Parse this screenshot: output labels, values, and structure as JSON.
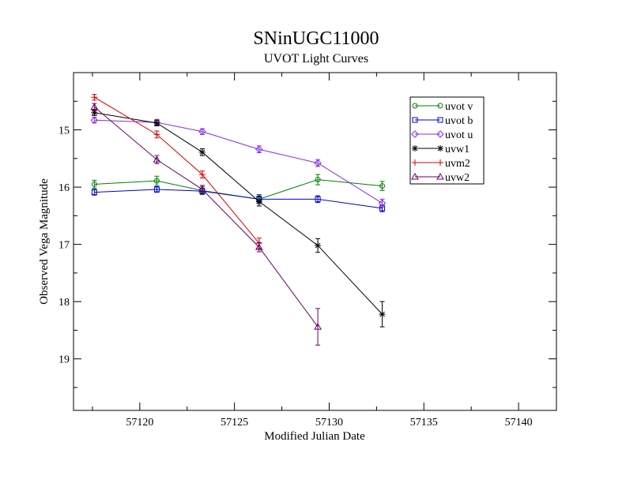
{
  "chart_data": {
    "type": "line",
    "title": "SNinUGC11000",
    "subtitle": "UVOT Light Curves",
    "xlabel": "Modified Julian Date",
    "ylabel": "Observed Vega Magnitude",
    "xlim": [
      57116.5,
      57142.0
    ],
    "ylim": [
      19.9,
      14.0
    ],
    "y_inverted": true,
    "xticks": [
      57120,
      57125,
      57130,
      57135,
      57140
    ],
    "yticks": [
      15,
      16,
      17,
      18,
      19
    ],
    "legend_position": "top-right",
    "series": [
      {
        "name": "uvot v",
        "color": "#008000",
        "marker": "circle",
        "x": [
          57117.6,
          57120.9,
          57123.3,
          57126.3,
          57129.4,
          57132.8
        ],
        "y": [
          15.95,
          15.89,
          16.06,
          16.21,
          15.87,
          15.98
        ],
        "err": [
          0.07,
          0.08,
          0.07,
          0.08,
          0.09,
          0.08
        ]
      },
      {
        "name": "uvot b",
        "color": "#0000cc",
        "marker": "square",
        "x": [
          57117.6,
          57120.9,
          57123.3,
          57126.3,
          57129.4,
          57132.8
        ],
        "y": [
          16.09,
          16.04,
          16.07,
          16.21,
          16.21,
          16.37
        ],
        "err": [
          0.05,
          0.05,
          0.05,
          0.06,
          0.06,
          0.06
        ]
      },
      {
        "name": "uvot u",
        "color": "#8a2be2",
        "marker": "diamond",
        "x": [
          57117.6,
          57120.9,
          57123.3,
          57126.3,
          57129.4,
          57132.8
        ],
        "y": [
          14.83,
          14.87,
          15.03,
          15.34,
          15.58,
          16.28
        ],
        "err": [
          0.05,
          0.05,
          0.05,
          0.06,
          0.06,
          0.07
        ]
      },
      {
        "name": "uvw1",
        "color": "#000000",
        "marker": "star",
        "x": [
          57117.6,
          57120.9,
          57123.3,
          57126.3,
          57129.4,
          57132.8
        ],
        "y": [
          14.7,
          14.88,
          15.39,
          16.25,
          17.02,
          18.22
        ],
        "err": [
          0.05,
          0.05,
          0.06,
          0.08,
          0.12,
          0.22
        ]
      },
      {
        "name": "uvm2",
        "color": "#dd0000",
        "marker": "plus",
        "x": [
          57117.6,
          57120.9,
          57123.3,
          57126.3
        ],
        "y": [
          14.43,
          15.08,
          15.78,
          16.98
        ],
        "err": [
          0.05,
          0.06,
          0.06,
          0.09
        ]
      },
      {
        "name": "uvw2",
        "color": "#660066",
        "marker": "triangle",
        "x": [
          57117.6,
          57120.9,
          57123.3,
          57126.3,
          57129.4
        ],
        "y": [
          14.6,
          15.52,
          16.04,
          17.05,
          18.44
        ],
        "err": [
          0.06,
          0.07,
          0.07,
          0.08,
          0.32
        ]
      }
    ]
  }
}
